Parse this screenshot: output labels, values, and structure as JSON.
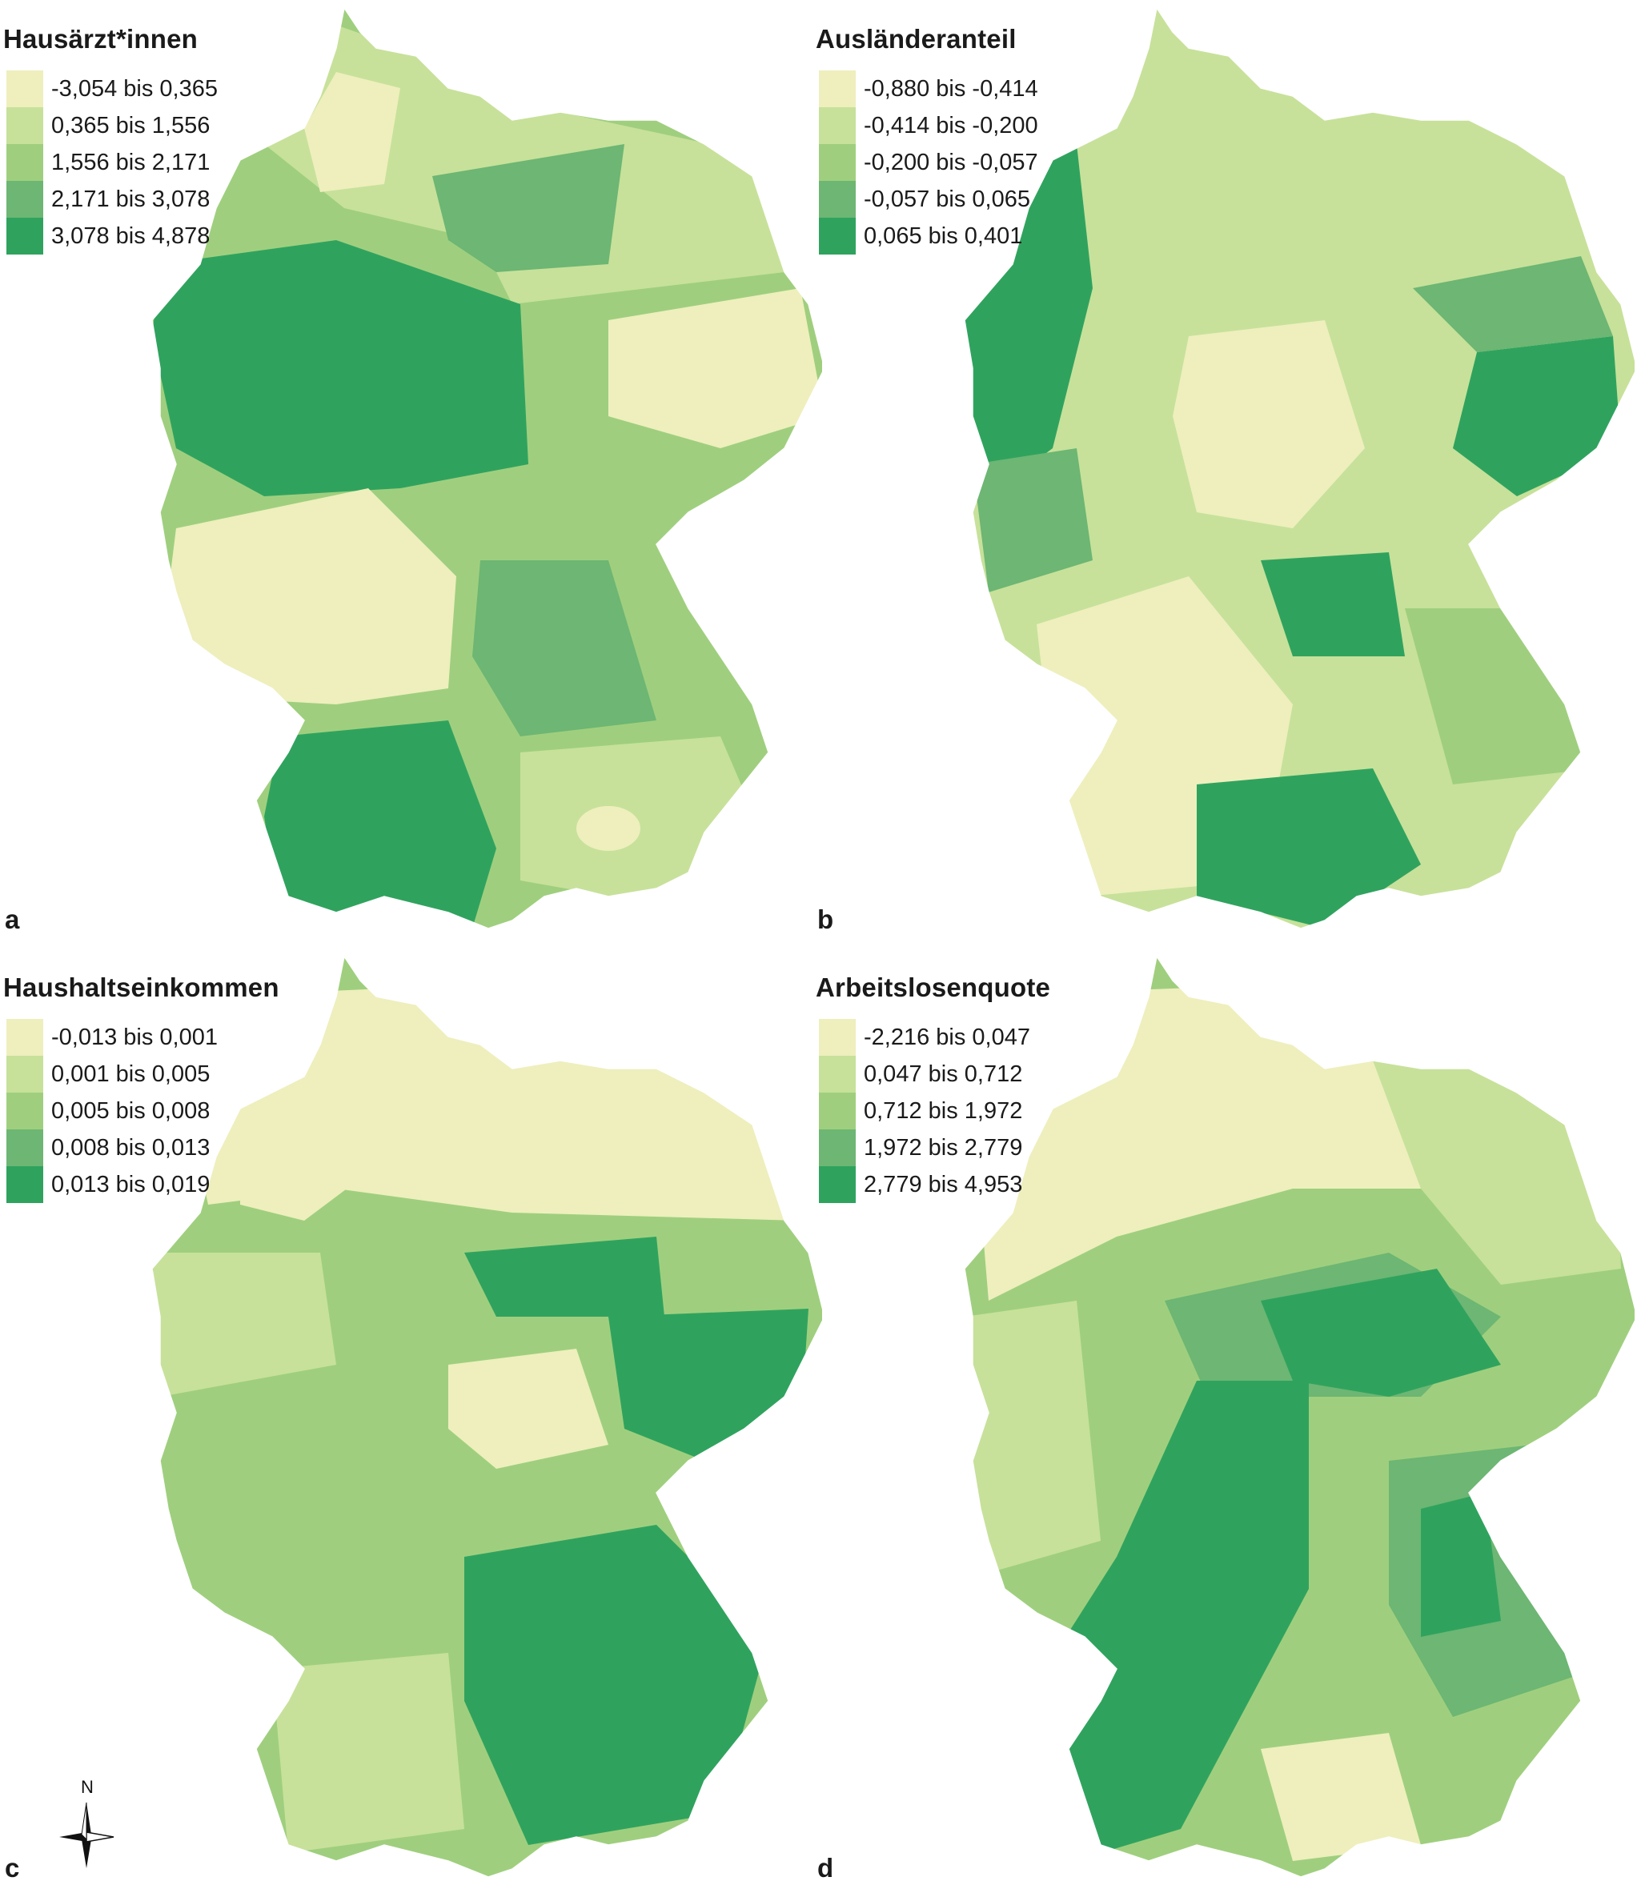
{
  "palette": [
    "#eeefbd",
    "#c7e19a",
    "#9fcf7e",
    "#6db673",
    "#2fa35e"
  ],
  "panels": [
    {
      "title": "Hausärzt*innen",
      "letter": "a",
      "legend": [
        "-3,054 bis 0,365",
        "0,365 bis 1,556",
        "1,556 bis 2,171",
        "2,171 bis 3,078",
        "3,078 bis 4,878"
      ]
    },
    {
      "title": "Ausländeranteil",
      "letter": "b",
      "legend": [
        "-0,880 bis -0,414",
        "-0,414 bis -0,200",
        "-0,200 bis -0,057",
        "-0,057 bis 0,065",
        "0,065 bis 0,401"
      ]
    },
    {
      "title": "Haushaltseinkommen",
      "letter": "c",
      "legend": [
        "-0,013 bis 0,001",
        "0,001 bis 0,005",
        "0,005 bis 0,008",
        "0,008 bis 0,013",
        "0,013 bis 0,019"
      ]
    },
    {
      "title": "Arbeitslosenquote",
      "letter": "d",
      "legend": [
        "-2,216 bis 0,047",
        "0,047 bis 0,712",
        "0,712 bis 1,972",
        "1,972 bis 2,779",
        "2,779 bis 4,953"
      ]
    }
  ],
  "north_arrow": {
    "label": "N",
    "icon": "compass-north-icon"
  }
}
